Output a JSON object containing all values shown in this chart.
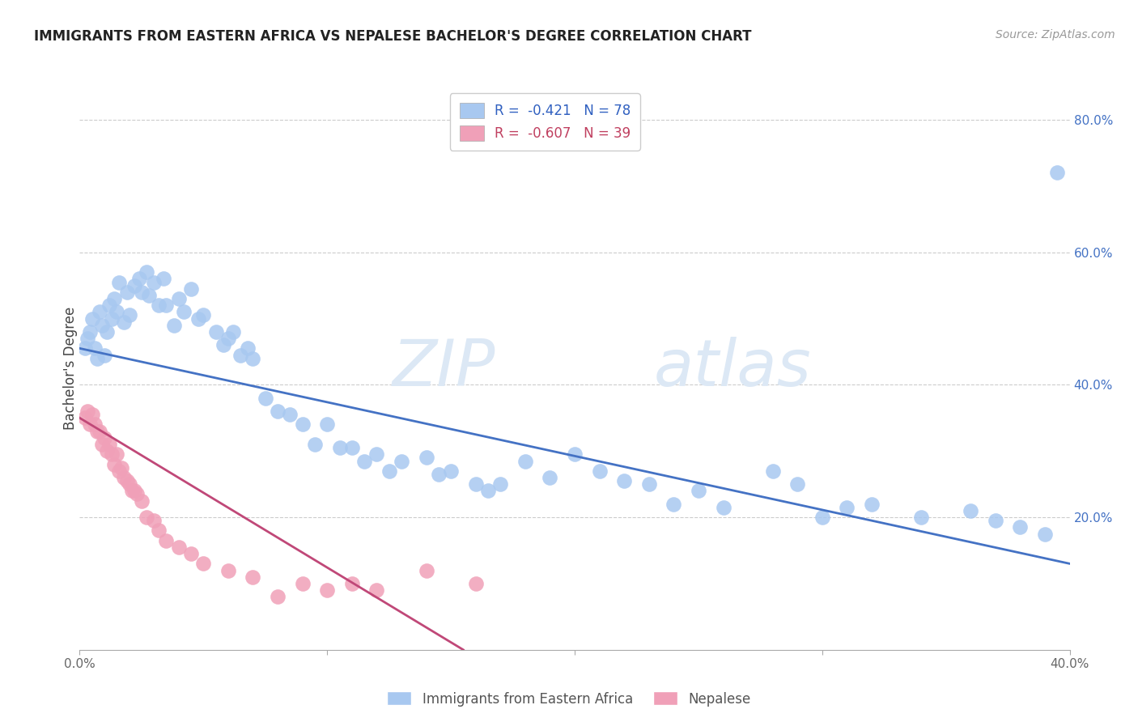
{
  "title": "IMMIGRANTS FROM EASTERN AFRICA VS NEPALESE BACHELOR'S DEGREE CORRELATION CHART",
  "source": "Source: ZipAtlas.com",
  "ylabel": "Bachelor's Degree",
  "xlim": [
    0.0,
    0.4
  ],
  "ylim": [
    0.0,
    0.85
  ],
  "blue_R": "-0.421",
  "blue_N": "78",
  "pink_R": "-0.607",
  "pink_N": "39",
  "blue_color": "#a8c8f0",
  "pink_color": "#f0a0b8",
  "blue_line_color": "#4472c4",
  "pink_line_color": "#c04878",
  "legend_label_blue": "Immigrants from Eastern Africa",
  "legend_label_pink": "Nepalese",
  "watermark_zip": "ZIP",
  "watermark_atlas": "atlas",
  "blue_x": [
    0.002,
    0.003,
    0.004,
    0.005,
    0.006,
    0.007,
    0.008,
    0.009,
    0.01,
    0.011,
    0.012,
    0.013,
    0.014,
    0.015,
    0.016,
    0.018,
    0.019,
    0.02,
    0.022,
    0.024,
    0.025,
    0.027,
    0.028,
    0.03,
    0.032,
    0.034,
    0.035,
    0.038,
    0.04,
    0.042,
    0.045,
    0.048,
    0.05,
    0.055,
    0.058,
    0.06,
    0.062,
    0.065,
    0.068,
    0.07,
    0.075,
    0.08,
    0.085,
    0.09,
    0.095,
    0.1,
    0.105,
    0.11,
    0.115,
    0.12,
    0.125,
    0.13,
    0.14,
    0.145,
    0.15,
    0.16,
    0.165,
    0.17,
    0.18,
    0.19,
    0.2,
    0.21,
    0.22,
    0.23,
    0.24,
    0.25,
    0.26,
    0.28,
    0.29,
    0.3,
    0.31,
    0.32,
    0.34,
    0.36,
    0.37,
    0.38,
    0.39,
    0.395
  ],
  "blue_y": [
    0.455,
    0.47,
    0.48,
    0.5,
    0.455,
    0.44,
    0.51,
    0.49,
    0.445,
    0.48,
    0.52,
    0.5,
    0.53,
    0.51,
    0.555,
    0.495,
    0.54,
    0.505,
    0.55,
    0.56,
    0.54,
    0.57,
    0.535,
    0.555,
    0.52,
    0.56,
    0.52,
    0.49,
    0.53,
    0.51,
    0.545,
    0.5,
    0.505,
    0.48,
    0.46,
    0.47,
    0.48,
    0.445,
    0.455,
    0.44,
    0.38,
    0.36,
    0.355,
    0.34,
    0.31,
    0.34,
    0.305,
    0.305,
    0.285,
    0.295,
    0.27,
    0.285,
    0.29,
    0.265,
    0.27,
    0.25,
    0.24,
    0.25,
    0.285,
    0.26,
    0.295,
    0.27,
    0.255,
    0.25,
    0.22,
    0.24,
    0.215,
    0.27,
    0.25,
    0.2,
    0.215,
    0.22,
    0.2,
    0.21,
    0.195,
    0.185,
    0.175,
    0.72
  ],
  "pink_x": [
    0.002,
    0.003,
    0.004,
    0.005,
    0.006,
    0.007,
    0.008,
    0.009,
    0.01,
    0.011,
    0.012,
    0.013,
    0.014,
    0.015,
    0.016,
    0.017,
    0.018,
    0.019,
    0.02,
    0.021,
    0.022,
    0.023,
    0.025,
    0.027,
    0.03,
    0.032,
    0.035,
    0.04,
    0.045,
    0.05,
    0.06,
    0.07,
    0.08,
    0.09,
    0.1,
    0.11,
    0.12,
    0.14,
    0.16
  ],
  "pink_y": [
    0.35,
    0.36,
    0.34,
    0.355,
    0.34,
    0.33,
    0.33,
    0.31,
    0.32,
    0.3,
    0.31,
    0.295,
    0.28,
    0.295,
    0.27,
    0.275,
    0.26,
    0.255,
    0.25,
    0.24,
    0.24,
    0.235,
    0.225,
    0.2,
    0.195,
    0.18,
    0.165,
    0.155,
    0.145,
    0.13,
    0.12,
    0.11,
    0.08,
    0.1,
    0.09,
    0.1,
    0.09,
    0.12,
    0.1
  ],
  "blue_line_x": [
    0.0,
    0.4
  ],
  "blue_line_y": [
    0.455,
    0.13
  ],
  "pink_line_x": [
    0.0,
    0.155
  ],
  "pink_line_y": [
    0.35,
    0.0
  ]
}
